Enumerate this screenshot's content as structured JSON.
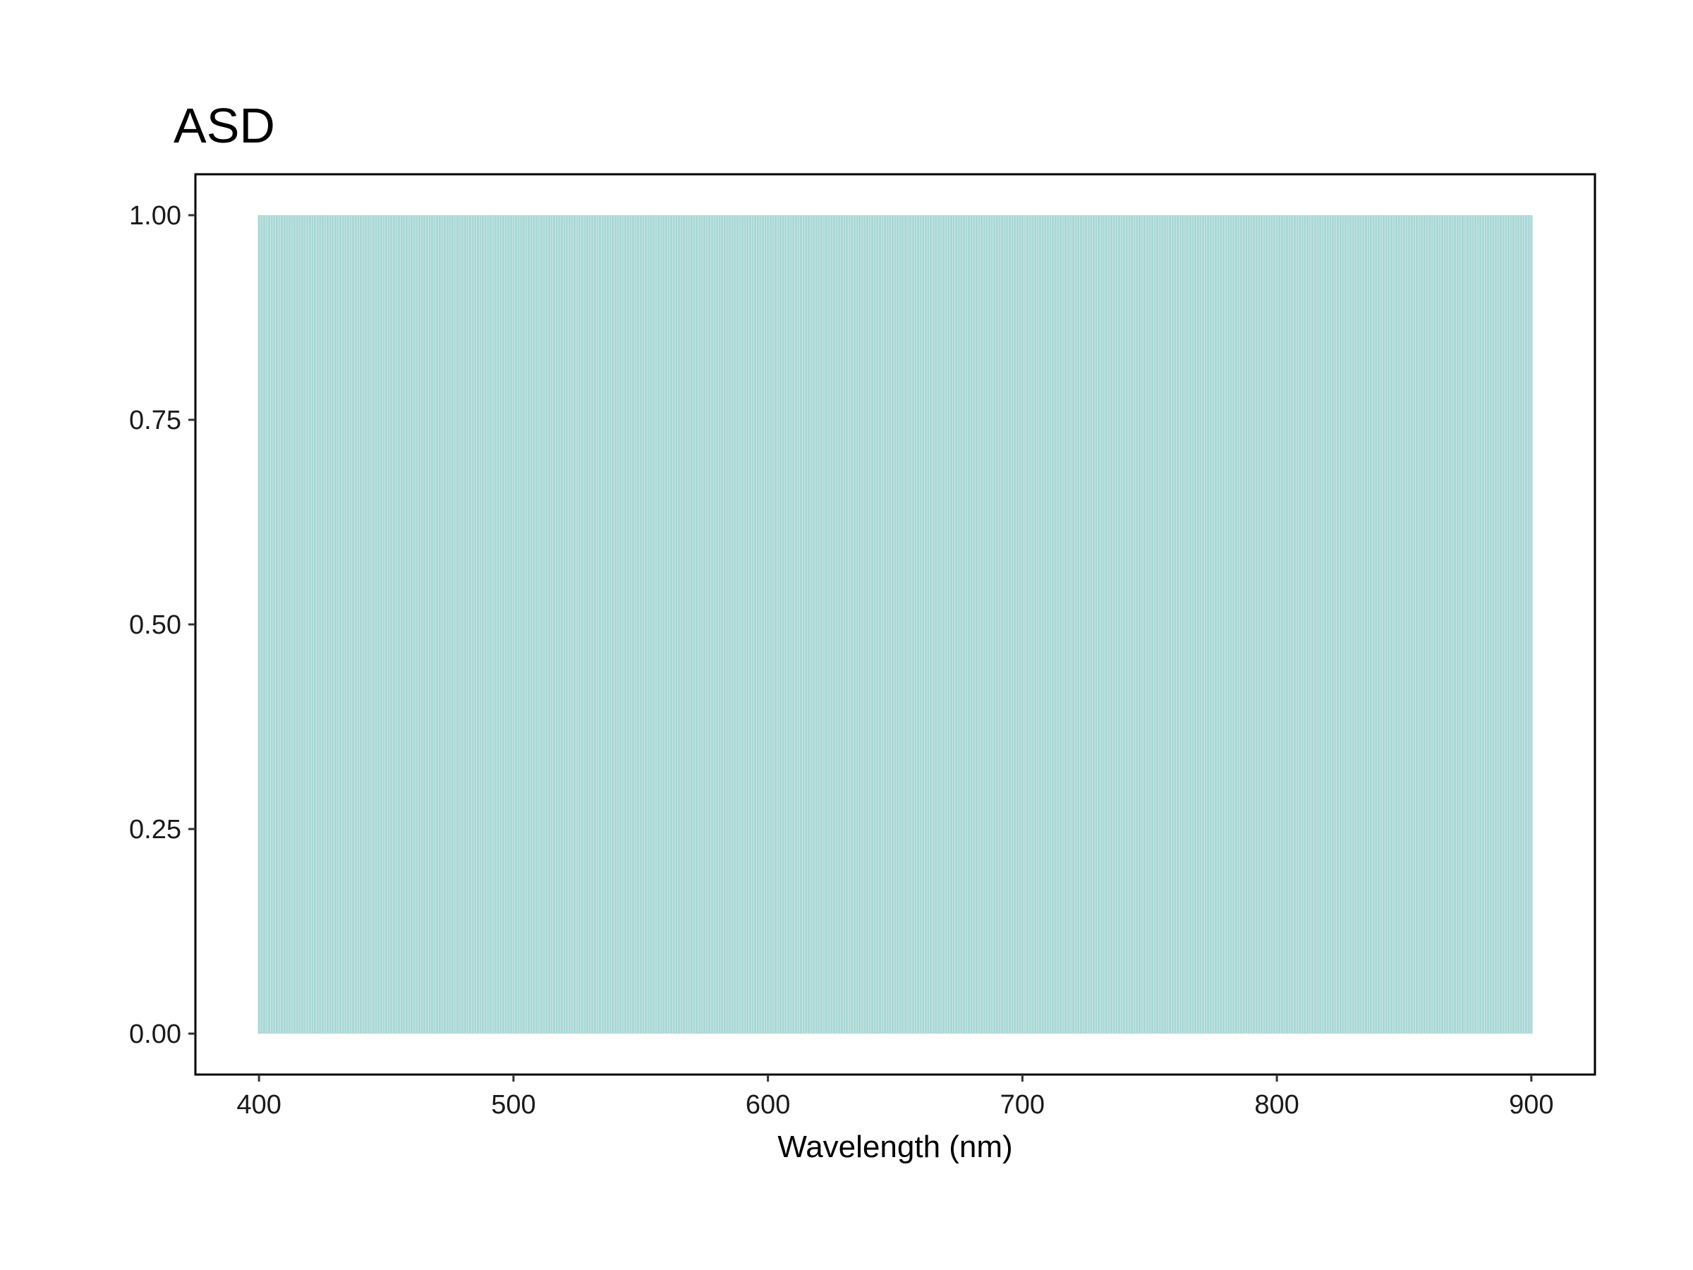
{
  "chart_data": {
    "type": "bar",
    "title": "ASD",
    "xlabel": "Wavelength (nm)",
    "ylabel": "",
    "xlim": [
      375,
      925
    ],
    "ylim": [
      -0.05,
      1.05
    ],
    "x_ticks": [
      400,
      500,
      600,
      700,
      800,
      900
    ],
    "y_ticks": [
      0.0,
      0.25,
      0.5,
      0.75,
      1.0
    ],
    "x_tick_labels": [
      "400",
      "500",
      "600",
      "700",
      "800",
      "900"
    ],
    "y_tick_labels": [
      "0.00",
      "0.25",
      "0.50",
      "0.75",
      "1.00"
    ],
    "wavelength_start": 400,
    "wavelength_end": 900,
    "wavelength_step": 1,
    "value": 1.0,
    "fill_color": "#0a8f8a",
    "bar_opacity": 0.35,
    "grid": false,
    "legend": "none"
  }
}
